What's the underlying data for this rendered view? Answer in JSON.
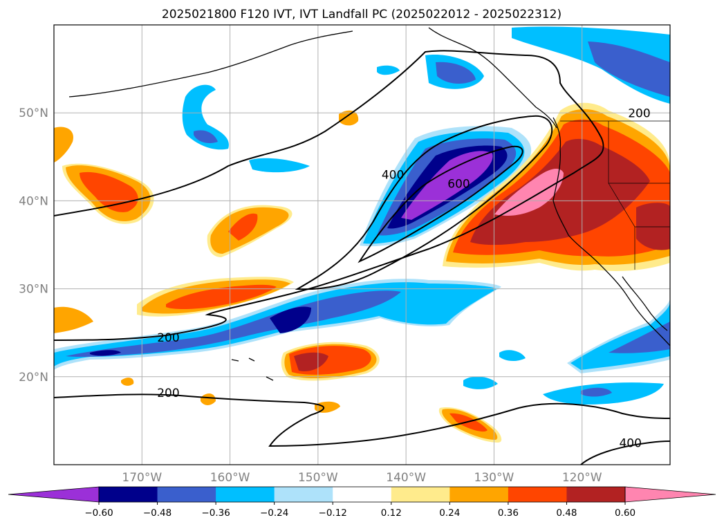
{
  "title": "2025021800 F120 IVT, IVT Landfall PC (2025022012 - 2025022312)",
  "map": {
    "lon_range": [
      -180,
      -110
    ],
    "lat_range": [
      10,
      60
    ],
    "lon_ticks": [
      {
        "value": -170,
        "label": "170°W"
      },
      {
        "value": -160,
        "label": "160°W"
      },
      {
        "value": -150,
        "label": "150°W"
      },
      {
        "value": -140,
        "label": "140°W"
      },
      {
        "value": -130,
        "label": "130°W"
      },
      {
        "value": -120,
        "label": "120°W"
      }
    ],
    "lat_ticks": [
      {
        "value": 20,
        "label": "20°N"
      },
      {
        "value": 30,
        "label": "30°N"
      },
      {
        "value": 40,
        "label": "40°N"
      },
      {
        "value": 50,
        "label": "50°N"
      }
    ],
    "gridlines": true,
    "contour_labels": [
      {
        "text": "200",
        "lon": -167.0,
        "lat": 24.0
      },
      {
        "text": "200",
        "lon": -167.0,
        "lat": 17.7
      },
      {
        "text": "400",
        "lon": -141.5,
        "lat": 42.5
      },
      {
        "text": "600",
        "lon": -134.0,
        "lat": 41.5
      },
      {
        "text": "400",
        "lon": -114.5,
        "lat": 12.0
      },
      {
        "text": "200",
        "lon": -113.5,
        "lat": 49.5
      }
    ]
  },
  "colorbar": {
    "ticks": [
      "−0.60",
      "−0.48",
      "−0.36",
      "−0.24",
      "−0.12",
      "0.12",
      "0.24",
      "0.36",
      "0.48",
      "0.60"
    ],
    "colors": [
      "#9b30d8",
      "#00008b",
      "#3a5fcd",
      "#00bfff",
      "#aee2fa",
      "#ffffff",
      "#ffeb8c",
      "#ffa500",
      "#ff4500",
      "#b22222",
      "#ff85b0"
    ]
  }
}
